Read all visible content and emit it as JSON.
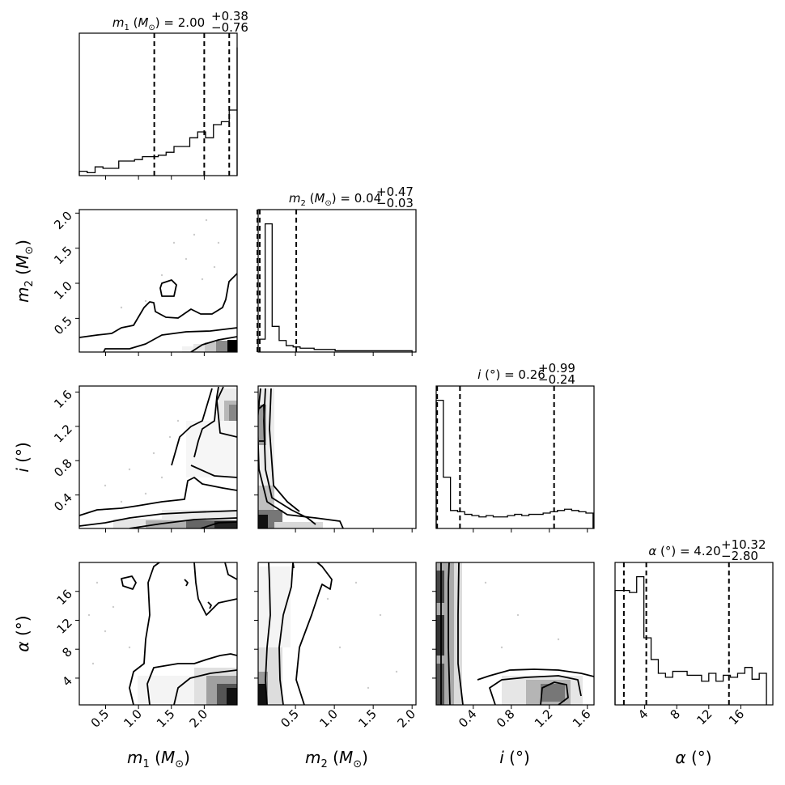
{
  "chart_data": {
    "type": "corner",
    "parameters": [
      {
        "key": "m1",
        "symbol": "m",
        "sub": "1",
        "unit": "M",
        "unit_sub": "⊙",
        "range": [
          0.1,
          2.5
        ],
        "ticks": [
          0.5,
          1.0,
          1.5,
          2.0
        ],
        "tick_labels": [
          "0.5",
          "1.0",
          "1.5",
          "2.0"
        ]
      },
      {
        "key": "m2",
        "symbol": "m",
        "sub": "2",
        "unit": "M",
        "unit_sub": "⊙",
        "range": [
          0.02,
          2.05
        ],
        "ticks": [
          0.5,
          1.0,
          1.5,
          2.0
        ],
        "tick_labels": [
          "0.5",
          "1.0",
          "1.5",
          "2.0"
        ]
      },
      {
        "key": "i",
        "symbol": "i",
        "sub": "",
        "unit": "°",
        "unit_sub": "",
        "range": [
          0.01,
          1.67
        ],
        "ticks": [
          0.4,
          0.8,
          1.2,
          1.6
        ],
        "tick_labels": [
          "0.4",
          "0.8",
          "1.2",
          "1.6"
        ]
      },
      {
        "key": "alpha",
        "symbol": "α",
        "sub": "",
        "unit": "°",
        "unit_sub": "",
        "range": [
          0.3,
          20
        ],
        "ticks": [
          4,
          8,
          12,
          16
        ],
        "tick_labels": [
          "4",
          "8",
          "12",
          "16"
        ]
      }
    ],
    "titles": [
      {
        "median": "2.00",
        "plus": "+0.38",
        "minus": "−0.76"
      },
      {
        "median": "0.04",
        "plus": "+0.47",
        "minus": "−0.03"
      },
      {
        "median": "0.26",
        "plus": "+0.99",
        "minus": "−0.24"
      },
      {
        "median": "4.20",
        "plus": "+10.32",
        "minus": "−2.80"
      }
    ],
    "quantiles": [
      [
        1.24,
        2.0,
        2.38
      ],
      [
        0.01,
        0.04,
        0.51
      ],
      [
        0.02,
        0.26,
        1.25
      ],
      [
        1.4,
        4.2,
        14.52
      ]
    ],
    "histograms": [
      {
        "edges_start": 0.1,
        "bin_width": 0.12,
        "counts": [
          3,
          2,
          6,
          5,
          5,
          10,
          10,
          11,
          13,
          13,
          14,
          16,
          20,
          20,
          26,
          30,
          26,
          35,
          37,
          45,
          50,
          57,
          88
        ]
      },
      {
        "edges_start": 0.02,
        "bin_width": 0.09,
        "counts": [
          10,
          100,
          20,
          9,
          5,
          4,
          3,
          3,
          2,
          2,
          2,
          1,
          1,
          1,
          1,
          1,
          1,
          1,
          1,
          1,
          1,
          1
        ]
      },
      {
        "edges_start": 0.01,
        "bin_width": 0.075,
        "counts": [
          100,
          40,
          14,
          13,
          11,
          10,
          9,
          10,
          9,
          9,
          10,
          11,
          10,
          11,
          11,
          12,
          13,
          14,
          15,
          14,
          13,
          12
        ]
      },
      {
        "edges_start": 0.3,
        "bin_width": 0.9,
        "counts": [
          58,
          58,
          57,
          65,
          34,
          23,
          16,
          14,
          17,
          17,
          15,
          15,
          12,
          16,
          12,
          15,
          14,
          16,
          19,
          13,
          16
        ]
      }
    ],
    "contour_levels": [
      "0.5σ",
      "1σ",
      "1.5σ",
      "2σ"
    ],
    "grid": false,
    "legend": "none"
  }
}
